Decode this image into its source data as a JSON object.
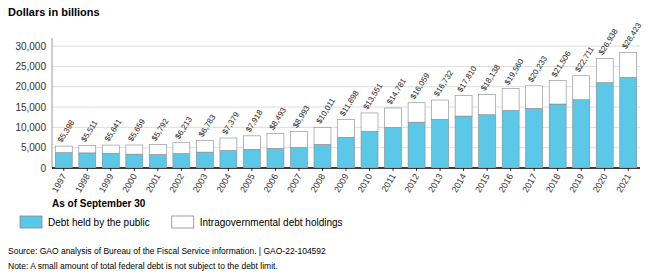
{
  "chart_data": {
    "type": "bar",
    "stacked": true,
    "title": "Dollars in billions",
    "x_label": "As of September 30",
    "source": "Source: GAO analysis of Bureau of the Fiscal Service information.  |  GAO-22-104592",
    "note": "Note: A small amount of total federal debt is not subject to the debt limit.",
    "categories": [
      "1997",
      "1998",
      "1999",
      "2000",
      "2001",
      "2002",
      "2003",
      "2004",
      "2005",
      "2006",
      "2007",
      "2008",
      "2009",
      "2010",
      "2011",
      "2012",
      "2013",
      "2014",
      "2015",
      "2016",
      "2017",
      "2018",
      "2019",
      "2020",
      "2021"
    ],
    "series": [
      {
        "name": "Debt held by the public",
        "color": "#5bc8e8",
        "values": [
          3772,
          3721,
          3633,
          3410,
          3320,
          3540,
          3913,
          4296,
          4592,
          4829,
          5035,
          5803,
          7552,
          9019,
          9982,
          11281,
          11982,
          12779,
          13117,
          14168,
          14665,
          15747,
          16801,
          21001,
          22285
        ]
      },
      {
        "name": "Intragovernmental debt holdings",
        "color": "#ffffff",
        "values": [
          1626,
          1790,
          2008,
          2249,
          2472,
          2673,
          2870,
          3083,
          3326,
          3664,
          3958,
          4208,
          4346,
          4532,
          4799,
          4778,
          4750,
          5031,
          5021,
          5392,
          5568,
          5759,
          5910,
          5937,
          6138
        ]
      }
    ],
    "totals": {
      "values": [
        5398,
        5511,
        5641,
        5659,
        5792,
        6213,
        6783,
        7379,
        7918,
        8493,
        8993,
        10011,
        11898,
        13551,
        14781,
        16059,
        16732,
        17810,
        18138,
        19560,
        20233,
        21506,
        22711,
        26938,
        28423
      ],
      "value_labels": [
        "$5,398",
        "$5,511",
        "$5,641",
        "$5,659",
        "$5,792",
        "$6,213",
        "$6,783",
        "$7,379",
        "$7,918",
        "$8,493",
        "$8,993",
        "$10,011",
        "$11,898",
        "$13,551",
        "$14,781",
        "$16,059",
        "$16,732",
        "$17,810",
        "$18,138",
        "$19,560",
        "$20,233",
        "$21,506",
        "$22,711",
        "$26,938",
        "$28,423"
      ]
    },
    "ylim": [
      0,
      32000
    ],
    "yticks": [
      0,
      {
        "value": 5000,
        "label": "5,000"
      },
      {
        "value": 10000,
        "label": "10,000"
      },
      {
        "value": 15000,
        "label": "15,000"
      },
      {
        "value": 20000,
        "label": "20,000"
      },
      {
        "value": 25000,
        "label": "25,000"
      },
      {
        "value": 30000,
        "label": "30,000"
      }
    ],
    "grid": true,
    "legend": "bottom"
  }
}
